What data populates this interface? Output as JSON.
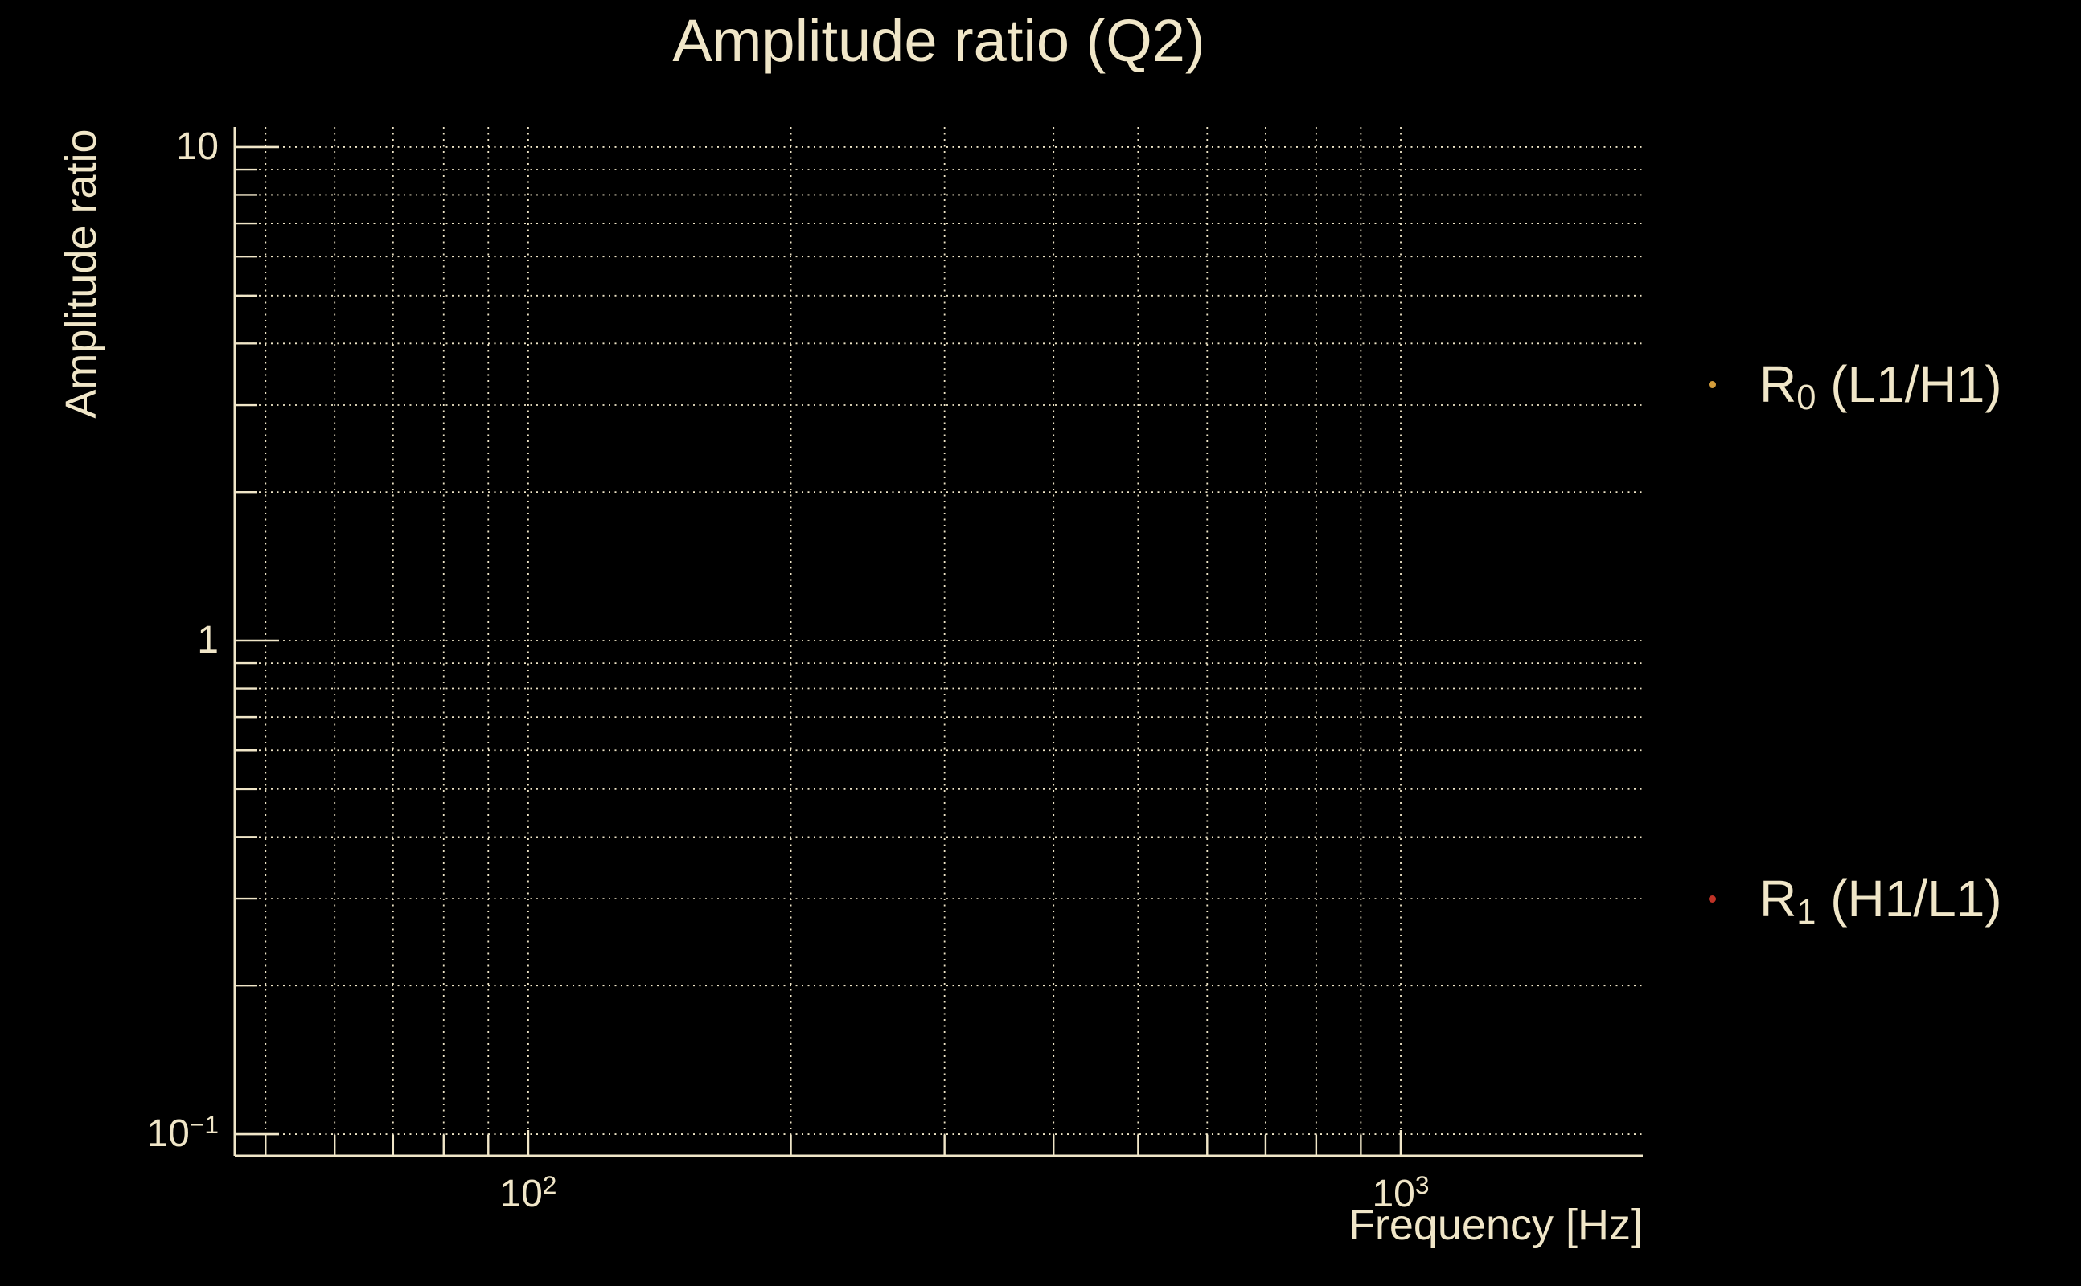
{
  "colors": {
    "background": "#000000",
    "foreground": "#f0e6c8",
    "grid": "#f0e6c8",
    "series0_marker": "#d49d3b",
    "series1_marker": "#bf3226"
  },
  "chart_data": {
    "type": "scatter",
    "title": "Amplitude ratio (Q2)",
    "xlabel": "Frequency [Hz]",
    "ylabel": "Amplitude ratio",
    "x_scale": "log",
    "y_scale": "log",
    "xlim": [
      46.1,
      1894
    ],
    "ylim": [
      0.0904,
      10.98
    ],
    "x_ticks": {
      "major": [
        {
          "value": 100,
          "label_base": "10",
          "label_exp": "2"
        },
        {
          "value": 1000,
          "label_base": "10",
          "label_exp": "3"
        }
      ],
      "minor": [
        50,
        60,
        70,
        80,
        90,
        200,
        300,
        400,
        500,
        600,
        700,
        800,
        900
      ]
    },
    "y_ticks": {
      "major": [
        {
          "value": 10,
          "label_base": "10",
          "label_exp": ""
        },
        {
          "value": 1,
          "label_base": "1",
          "label_exp": ""
        },
        {
          "value": 0.1,
          "label_base": "10",
          "label_exp": "−1"
        }
      ],
      "minor": [
        9,
        8,
        7,
        6,
        5,
        4,
        3,
        2,
        0.9,
        0.8,
        0.7,
        0.6,
        0.5,
        0.4,
        0.3,
        0.2
      ]
    },
    "grid": {
      "style": "dotted",
      "which": "both major and minor",
      "on": true
    },
    "legend_position": "outside right",
    "series": [
      {
        "label_base": "R",
        "label_sub": "0",
        "label_rest": " (L1/H1)",
        "color": "#d49d3b",
        "marker": "point",
        "points": []
      },
      {
        "label_base": "R",
        "label_sub": "1",
        "label_rest": " (H1/L1)",
        "color": "#bf3226",
        "marker": "point",
        "points": []
      }
    ]
  }
}
